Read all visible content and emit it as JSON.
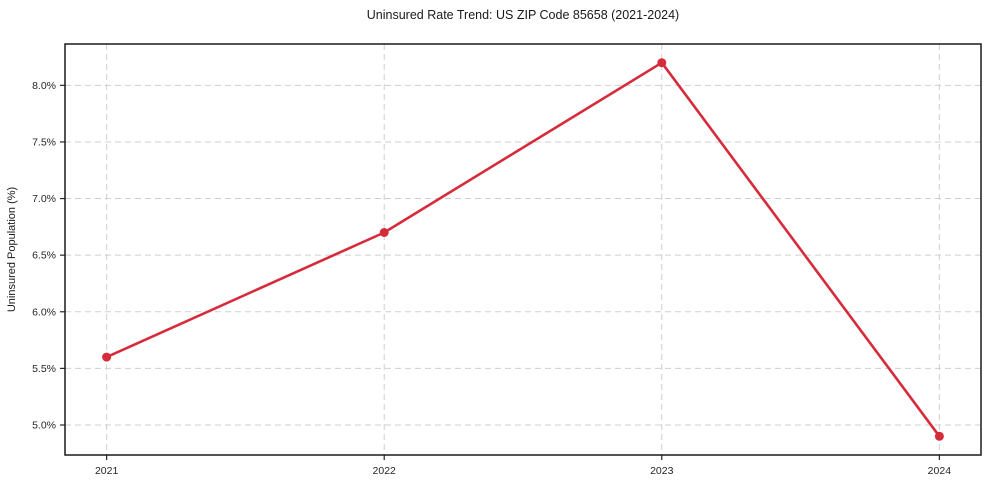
{
  "chart_data": {
    "type": "line",
    "title": "Uninsured Rate Trend: US ZIP Code 85658 (2021-2024)",
    "xlabel": "",
    "ylabel": "Uninsured Population (%)",
    "x": [
      2021,
      2022,
      2023,
      2024
    ],
    "x_tick_labels": [
      "2021",
      "2022",
      "2023",
      "2024"
    ],
    "values": [
      5.6,
      6.7,
      8.2,
      4.9
    ],
    "y_ticks": [
      5.0,
      5.5,
      6.0,
      6.5,
      7.0,
      7.5,
      8.0
    ],
    "y_tick_labels": [
      "5.0%",
      "5.5%",
      "6.0%",
      "6.5%",
      "7.0%",
      "7.5%",
      "8.0%"
    ],
    "xlim": [
      2020.85,
      2024.15
    ],
    "ylim": [
      4.735,
      8.365
    ],
    "grid": true,
    "legend_position": "none",
    "line_color": "#d62b3a",
    "marker": "circle"
  }
}
